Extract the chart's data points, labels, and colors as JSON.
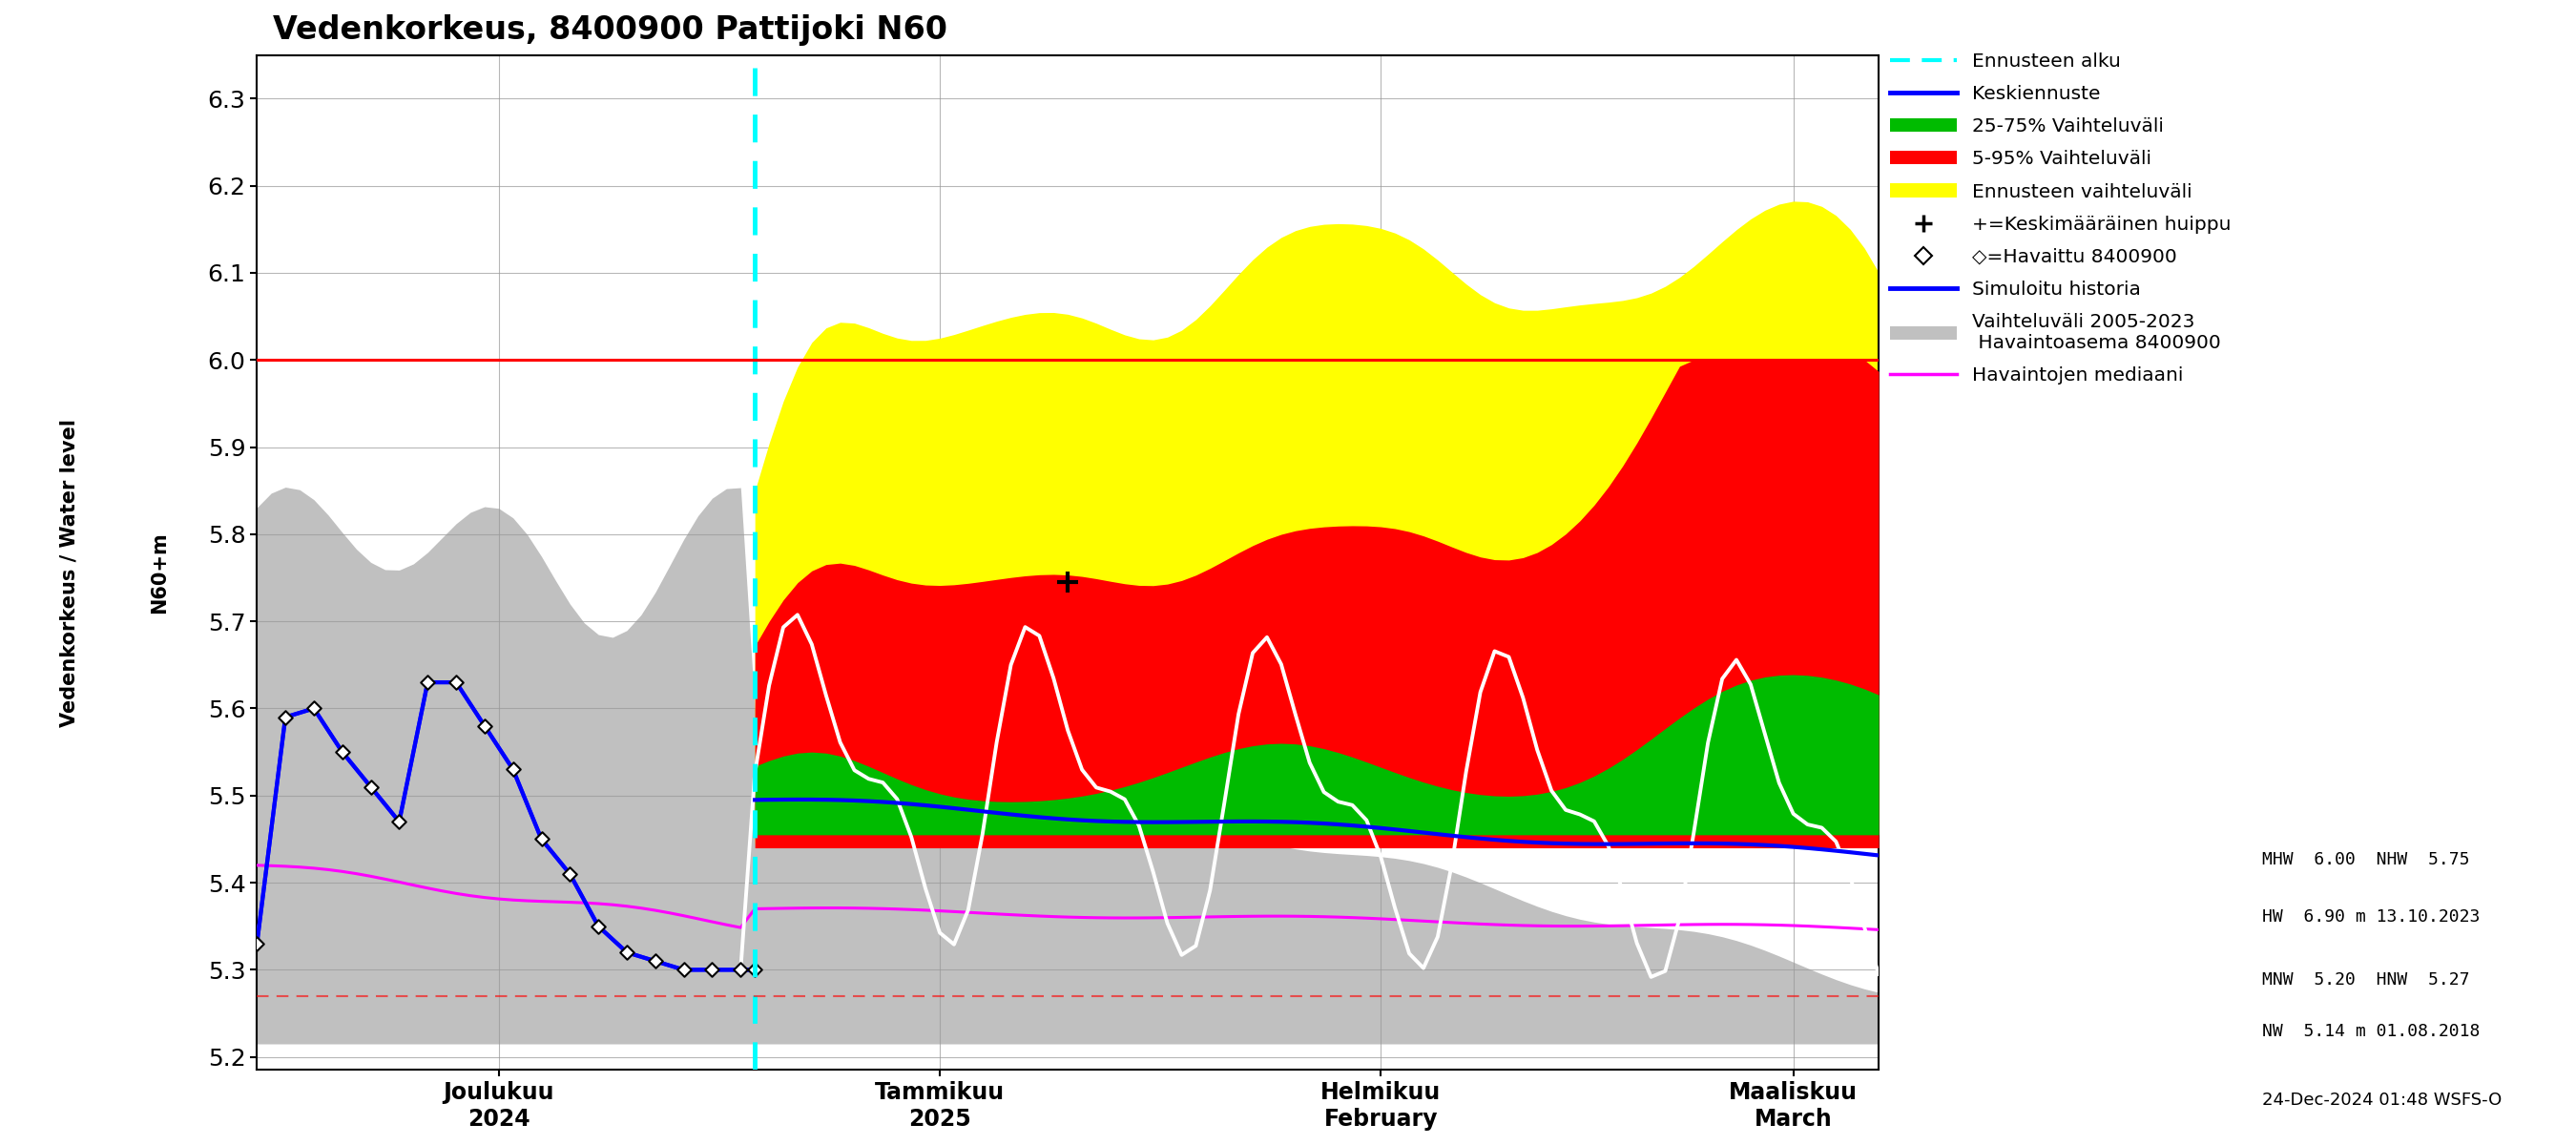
{
  "title": "Vedenkorkeus, 8400900 Pattijoki N60",
  "ylabel1": "Vedenkorkeus / Water level",
  "ylabel2": "N60+m",
  "ylim": [
    5.185,
    6.35
  ],
  "yticks": [
    5.2,
    5.3,
    5.4,
    5.5,
    5.6,
    5.7,
    5.8,
    5.9,
    6.0,
    6.1,
    6.2,
    6.3
  ],
  "forecast_start_idx": 35,
  "n_total": 115,
  "MHW": 6.0,
  "NHW": 5.75,
  "HW_val": 6.9,
  "HW_date": "13.10.2023",
  "MNW": 5.2,
  "HNW": 5.27,
  "NW_val": 5.14,
  "NW_date": "01.08.2018",
  "date_label": "24-Dec-2024 01:48 WSFS-O",
  "obs_days": [
    0,
    2,
    4,
    6,
    8,
    10,
    12,
    14,
    16,
    18,
    20,
    22,
    24,
    26,
    28,
    30,
    32,
    34,
    35
  ],
  "obs_vals": [
    5.33,
    5.59,
    5.6,
    5.55,
    5.51,
    5.47,
    5.63,
    5.63,
    5.58,
    5.53,
    5.45,
    5.41,
    5.35,
    5.32,
    5.31,
    5.3,
    5.3,
    5.3,
    5.3
  ],
  "plus_marker_x": 57,
  "plus_marker_y": 5.745,
  "x_tick_positions": [
    17,
    48,
    79,
    108
  ],
  "x_tick_labels": [
    "Joulukuu\n2024",
    "Tammikuu\n2025",
    "Helmikuu\nFebruary",
    "Maaliskuu\nMarch"
  ],
  "gray_band_color": "#C0C0C0",
  "yellow_color": "#FFFF00",
  "red_color": "#FF0000",
  "green_color": "#00BB00",
  "blue_color": "#0000FF",
  "white_color": "#FFFFFF",
  "magenta_color": "#FF00FF",
  "cyan_color": "#00FFFF",
  "bg_color": "#FFFFFF"
}
